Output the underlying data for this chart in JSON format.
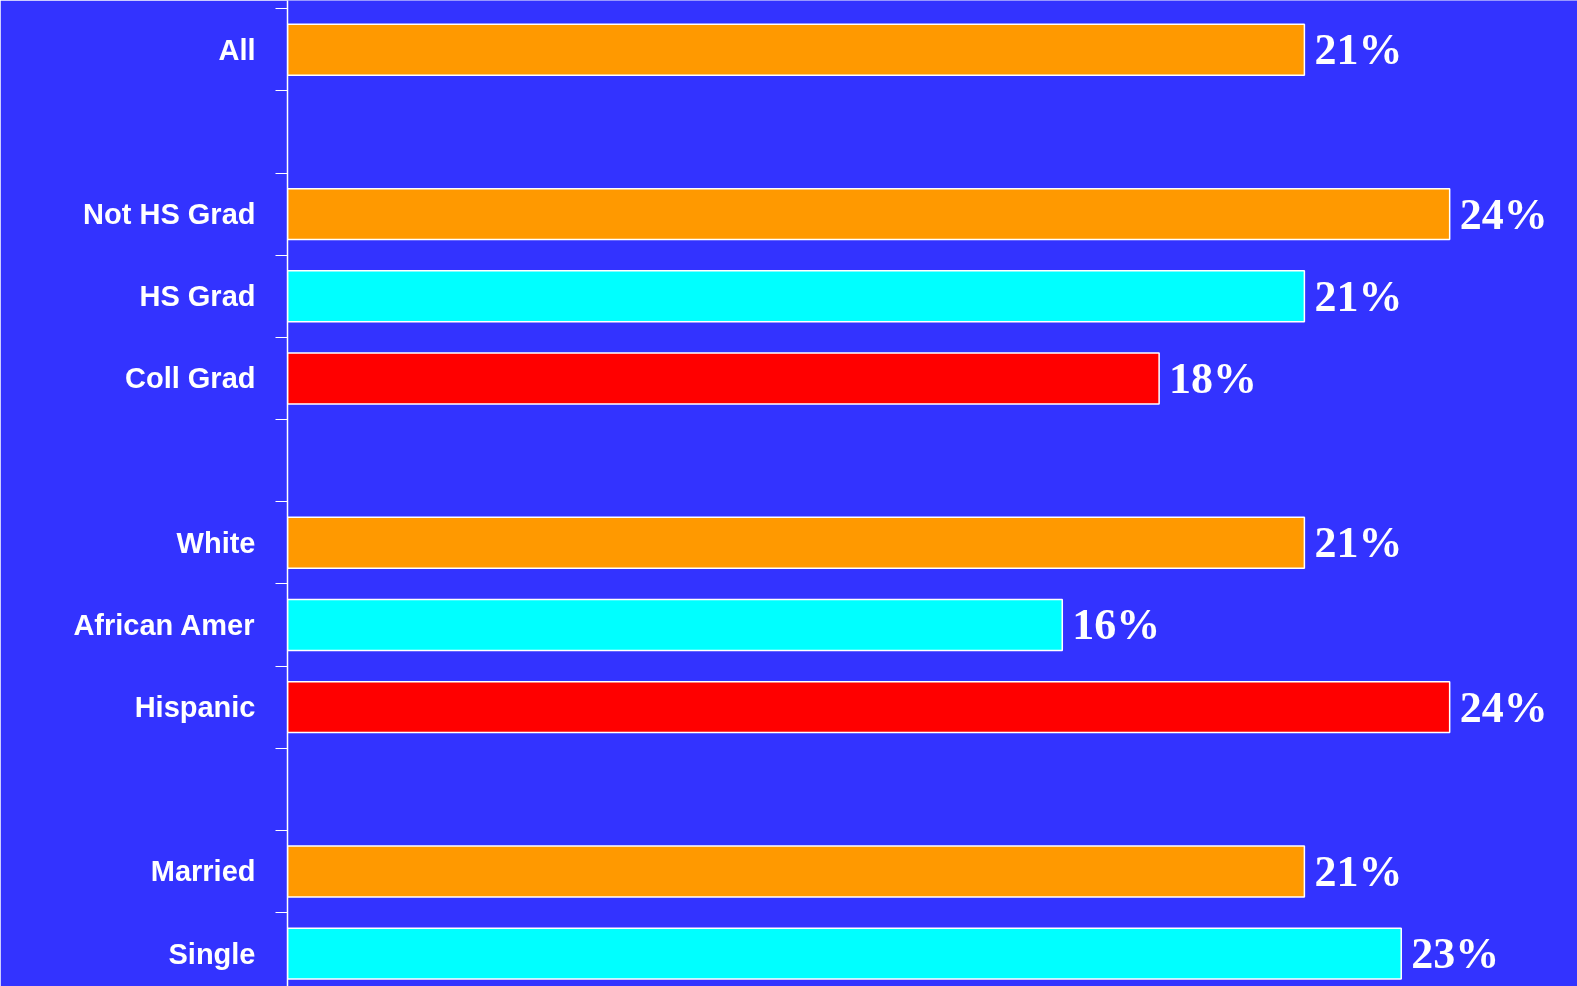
{
  "chart_data": {
    "type": "bar",
    "orientation": "horizontal",
    "categories": [
      "All",
      null,
      "Not HS Grad",
      "HS Grad",
      "Coll Grad",
      null,
      "White",
      "African Amer",
      "Hispanic",
      null,
      "Married",
      "Single"
    ],
    "values": [
      21,
      null,
      24,
      21,
      18,
      null,
      21,
      16,
      24,
      null,
      21,
      23
    ],
    "colors": [
      "#ff9900",
      null,
      "#ff9900",
      "#00ffff",
      "#ff0000",
      null,
      "#ff9900",
      "#00ffff",
      "#ff0000",
      null,
      "#ff9900",
      "#00ffff"
    ],
    "value_labels": [
      "21%",
      null,
      "24%",
      "21%",
      "18%",
      null,
      "21%",
      "16%",
      "24%",
      null,
      "21%",
      "23%"
    ],
    "grid": false
  }
}
